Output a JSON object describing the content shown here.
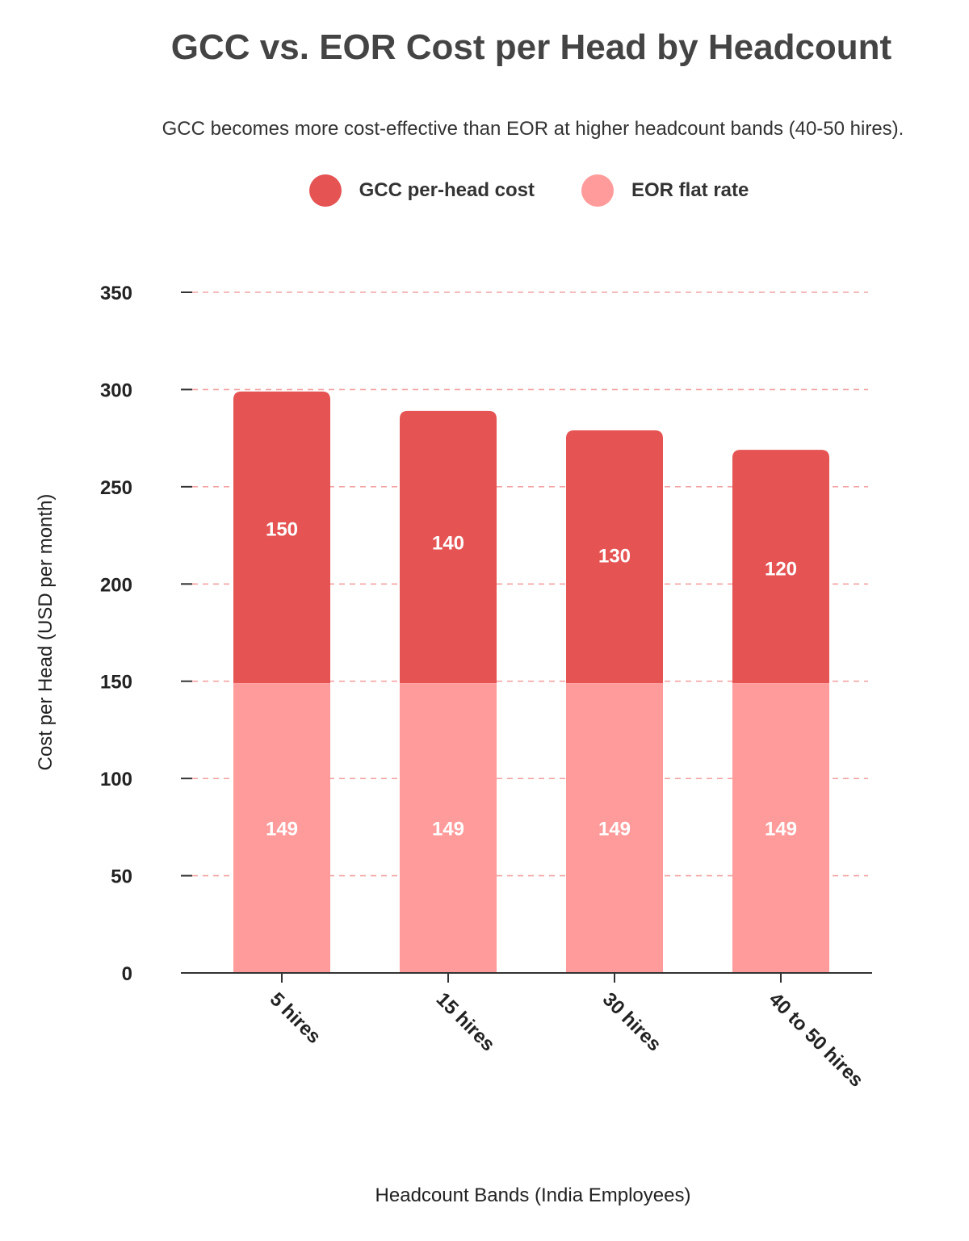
{
  "title": "GCC vs. EOR Cost per Head by Headcount",
  "subtitle": "GCC becomes more cost-effective than EOR at higher headcount bands (40-50 hires).",
  "colors": {
    "gcc": "#e55353",
    "eor": "#ff9b9b",
    "grid": "#f3a3a3",
    "axis": "#333333"
  },
  "chart_data": {
    "type": "bar",
    "stacked": true,
    "title": "GCC vs. EOR Cost per Head by Headcount",
    "subtitle": "GCC becomes more cost-effective than EOR at higher headcount bands (40-50 hires).",
    "categories": [
      "5 hires",
      "15 hires",
      "30 hires",
      "40 to 50 hires"
    ],
    "series": [
      {
        "name": "EOR flat rate",
        "values": [
          149,
          149,
          149,
          149
        ]
      },
      {
        "name": "GCC per-head cost",
        "values": [
          150,
          140,
          130,
          120
        ]
      }
    ],
    "legend": [
      "GCC per-head cost",
      "EOR flat rate"
    ],
    "legend_position": "top-center",
    "xlabel": "Headcount Bands (India Employees)",
    "ylabel": "Cost per Head (USD per month)",
    "ylim": [
      0,
      350
    ],
    "yticks": [
      0,
      50,
      100,
      150,
      200,
      250,
      300,
      350
    ],
    "grid": true
  }
}
